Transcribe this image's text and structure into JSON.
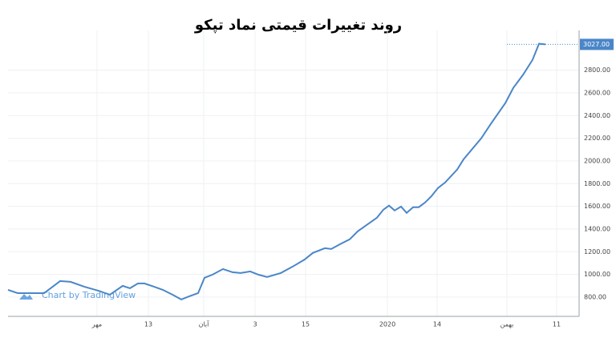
{
  "chart_data": {
    "type": "line",
    "title": "روند تغییرات قیمتی نماد تپکو",
    "watermark": "Chart by TradingView",
    "x": [
      0,
      12,
      30,
      45,
      65,
      78,
      95,
      112,
      127,
      143,
      152,
      162,
      170,
      182,
      193,
      205,
      216,
      226,
      237,
      245,
      255,
      268,
      280,
      290,
      302,
      312,
      323,
      340,
      355,
      370,
      380,
      395,
      403,
      414,
      426,
      436,
      460,
      468,
      475,
      482,
      490,
      497,
      505,
      512,
      520,
      528,
      536,
      545,
      560,
      568,
      590,
      602,
      620,
      630,
      642,
      654,
      662,
      670
    ],
    "series": [
      {
        "name": "تپکو",
        "color": "#4a86c8",
        "values": [
          864,
          835,
          835,
          835,
          941,
          934,
          892,
          857,
          821,
          899,
          878,
          920,
          920,
          892,
          864,
          821,
          779,
          807,
          835,
          970,
          998,
          1047,
          1019,
          1012,
          1026,
          998,
          977,
          1012,
          1069,
          1132,
          1189,
          1231,
          1224,
          1266,
          1309,
          1380,
          1500,
          1570,
          1606,
          1563,
          1598,
          1542,
          1592,
          1592,
          1634,
          1690,
          1761,
          1810,
          1924,
          2015,
          2199,
          2327,
          2510,
          2644,
          2758,
          2892,
          3033,
          3027
        ]
      }
    ],
    "last_value": {
      "value": 3027,
      "label": "3027.00"
    },
    "xlim": [
      0,
      712
    ],
    "xticks": [
      {
        "value": 111,
        "label": "مهر"
      },
      {
        "value": 175,
        "label": "13"
      },
      {
        "value": 244,
        "label": "آبان"
      },
      {
        "value": 308,
        "label": "3"
      },
      {
        "value": 371,
        "label": "15"
      },
      {
        "value": 473,
        "label": "2020"
      },
      {
        "value": 535,
        "label": "14"
      },
      {
        "value": 622,
        "label": "بهمن"
      },
      {
        "value": 684,
        "label": "11"
      }
    ],
    "ylim": [
      630,
      3150
    ],
    "yticks": [
      {
        "value": 800,
        "label": "800.00"
      },
      {
        "value": 1000,
        "label": "1000.00"
      },
      {
        "value": 1200,
        "label": "1200.00"
      },
      {
        "value": 1400,
        "label": "1400.00"
      },
      {
        "value": 1600,
        "label": "1600.00"
      },
      {
        "value": 1800,
        "label": "1800.00"
      },
      {
        "value": 2000,
        "label": "2000.00"
      },
      {
        "value": 2200,
        "label": "2200.00"
      },
      {
        "value": 2400,
        "label": "2400.00"
      },
      {
        "value": 2600,
        "label": "2600.00"
      },
      {
        "value": 2800,
        "label": "2800.00"
      }
    ],
    "grid": true
  }
}
